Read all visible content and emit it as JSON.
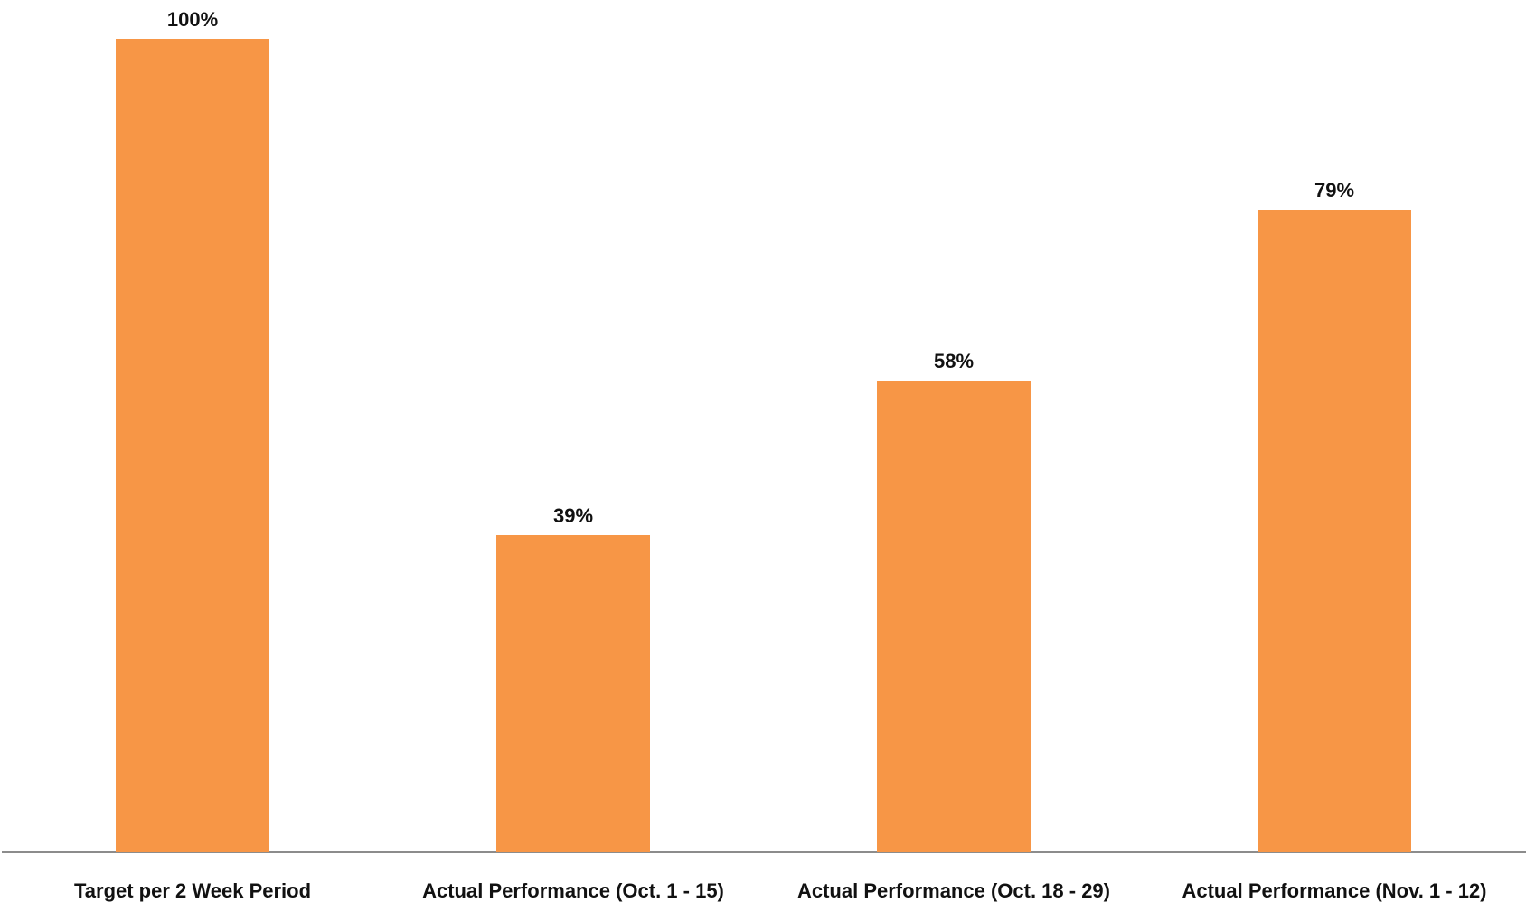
{
  "chart_data": {
    "type": "bar",
    "categories": [
      "Target per 2 Week Period",
      "Actual Performance (Oct. 1 - 15)",
      "Actual Performance (Oct. 18 - 29)",
      "Actual Performance (Nov. 1 - 12)"
    ],
    "values": [
      100,
      39,
      58,
      79
    ],
    "data_labels": [
      "100%",
      "39%",
      "58%",
      "79%"
    ],
    "title": "",
    "xlabel": "",
    "ylabel": "",
    "ylim": [
      0,
      100
    ],
    "grid": false,
    "legend": "none",
    "colors": {
      "bar": "#F79646",
      "axis": "#8c8c8c",
      "text": "#111111"
    }
  }
}
